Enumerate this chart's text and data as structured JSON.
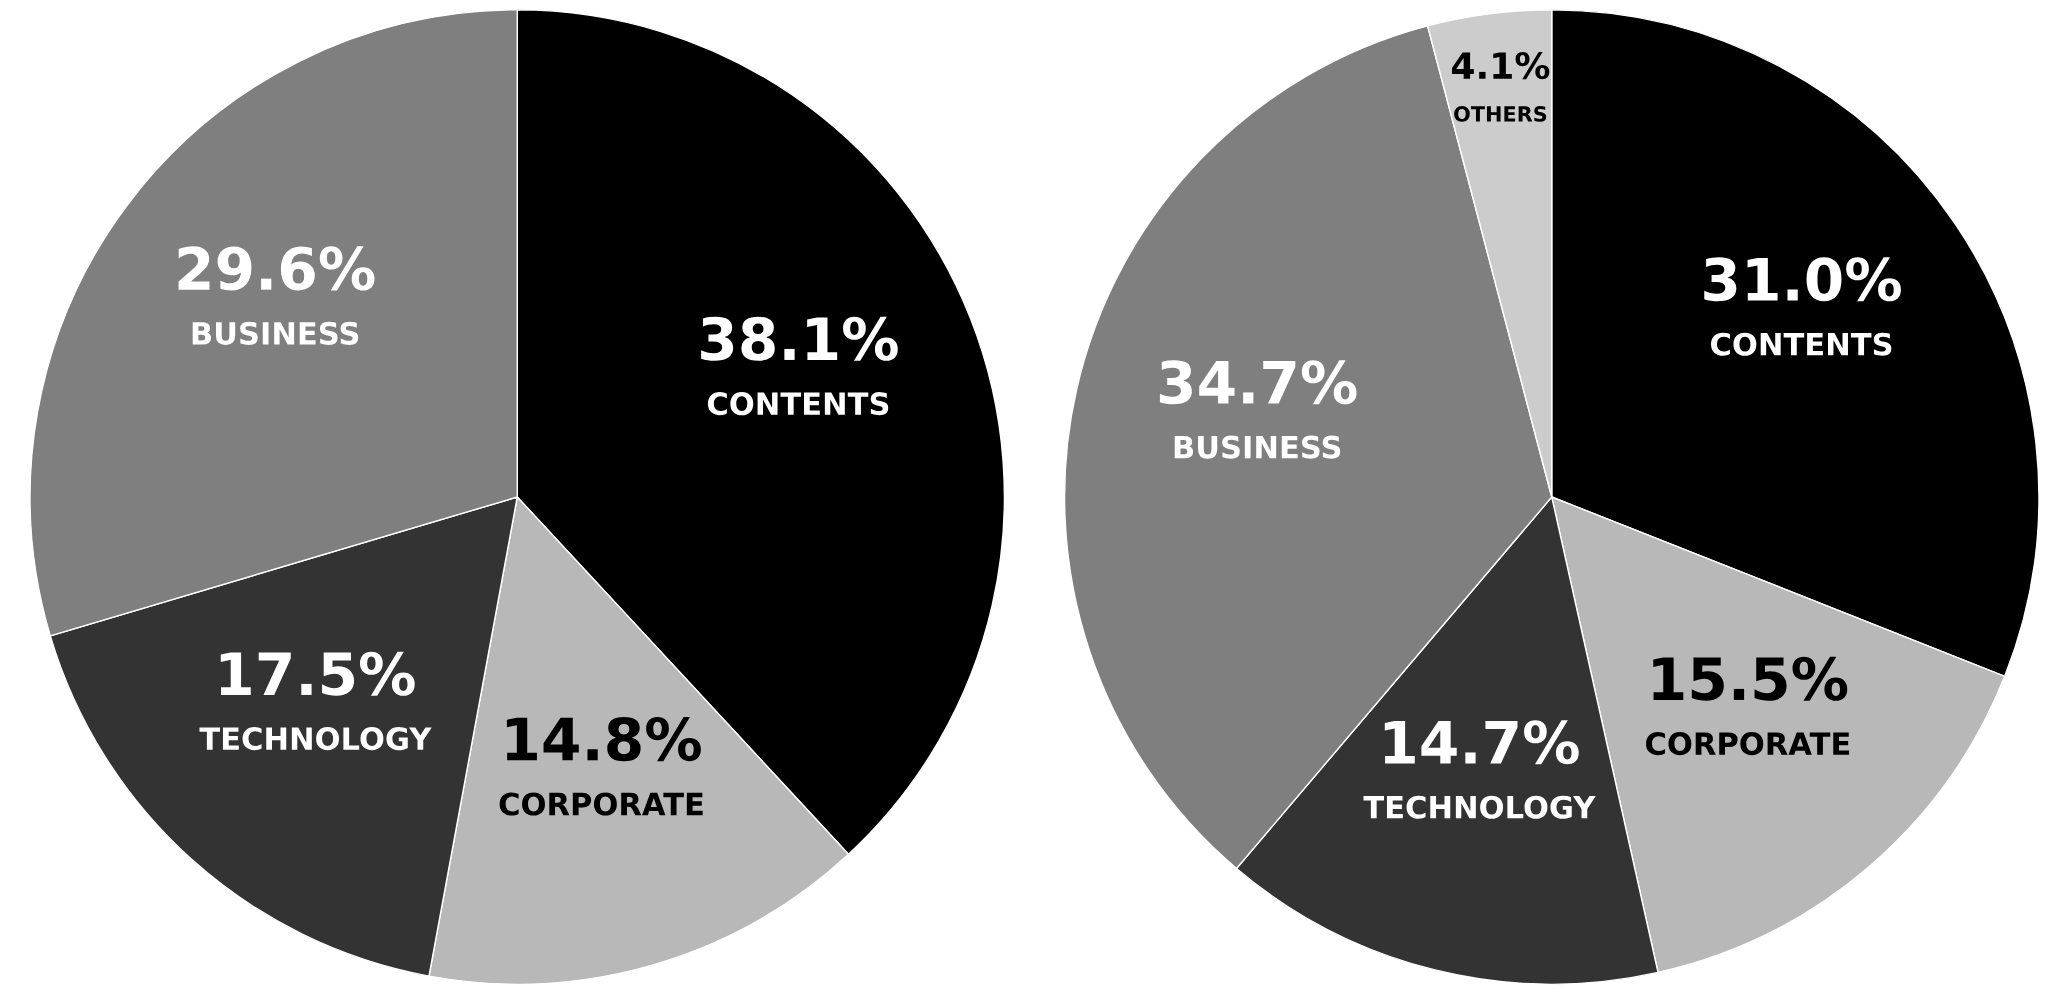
{
  "chart_data": [
    {
      "type": "pie",
      "categories": [
        "CONTENTS",
        "CORPORATE",
        "TECHNOLOGY",
        "BUSINESS"
      ],
      "values": [
        38.1,
        14.8,
        17.5,
        29.6
      ],
      "colors": [
        "#000000",
        "#b8b8b8",
        "#333333",
        "#7f7f7f"
      ],
      "value_labels": [
        "38.1%",
        "14.8%",
        "17.5%",
        "29.6%"
      ]
    },
    {
      "type": "pie",
      "categories": [
        "CONTENTS",
        "CORPORATE",
        "TECHNOLOGY",
        "BUSINESS",
        "OTHERS"
      ],
      "values": [
        31.0,
        15.5,
        14.7,
        34.7,
        4.1
      ],
      "colors": [
        "#000000",
        "#b8b8b8",
        "#333333",
        "#7f7f7f",
        "#cccccc"
      ],
      "value_labels": [
        "31.0%",
        "15.5%",
        "14.7%",
        "34.7%",
        "4.1%"
      ]
    }
  ]
}
